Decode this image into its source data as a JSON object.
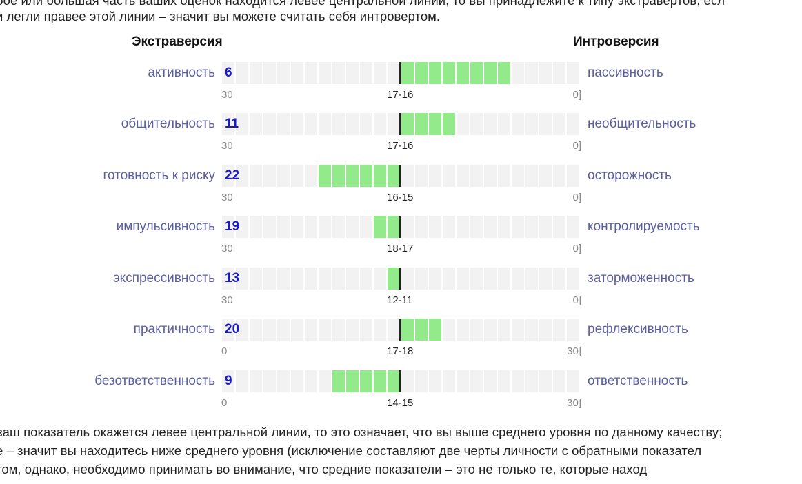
{
  "intro_lines": [
    "бое или большая часть ваших оценок находится левее центральной линии, то вы принадлежите к типу экстравертов, есл",
    "и легли правее этой линии – значит вы можете считать себя интровертом."
  ],
  "column_titles": {
    "left": "Экстраверсия",
    "right": "Интроверсия"
  },
  "scales": [
    {
      "left_label": "активность",
      "score": "6",
      "right_label": "пассивность",
      "axis_min": "30",
      "axis_mid": "17-16",
      "axis_max": "0]",
      "fill_from": 13,
      "fill_to": 21
    },
    {
      "left_label": "общительность",
      "score": "11",
      "right_label": "необщительность",
      "axis_min": "30",
      "axis_mid": "17-16",
      "axis_max": "0]",
      "fill_from": 13,
      "fill_to": 17
    },
    {
      "left_label": "готовность к риску",
      "score": "22",
      "right_label": "осторожность",
      "axis_min": "30",
      "axis_mid": "16-15",
      "axis_max": "0]",
      "fill_from": 7,
      "fill_to": 13
    },
    {
      "left_label": "импульсивность",
      "score": "19",
      "right_label": "контролируемость",
      "axis_min": "30",
      "axis_mid": "18-17",
      "axis_max": "0]",
      "fill_from": 11,
      "fill_to": 13
    },
    {
      "left_label": "экспрессивность",
      "score": "13",
      "right_label": "заторможенность",
      "axis_min": "30",
      "axis_mid": "12-11",
      "axis_max": "0]",
      "fill_from": 12,
      "fill_to": 13
    },
    {
      "left_label": "практичность",
      "score": "20",
      "right_label": "рефлексивность",
      "axis_min": "0",
      "axis_mid": "17-18",
      "axis_max": "30]",
      "fill_from": 13,
      "fill_to": 16
    },
    {
      "left_label": "безответственность",
      "score": "9",
      "right_label": "ответственность",
      "axis_min": "0",
      "axis_mid": "14-15",
      "axis_max": "30]",
      "fill_from": 8,
      "fill_to": 13
    }
  ],
  "outro_lines": [
    "ваш показатель окажется левее центральной линии, то это означает, что вы выше среднего уровня по данному качеству;",
    "е – значит вы находитесь ниже среднего уровня (исключение составляют две черты личности с обратными показател",
    "том, однако, необходимо принимать во внимание, что средние показатели – это не только те, которые наход",
    "                                                                                                                    "
  ],
  "colors": {
    "label": "#5b5fa0",
    "score": "#1a1acc",
    "fill": "#93ea8a",
    "track": "#f2f2f2"
  }
}
